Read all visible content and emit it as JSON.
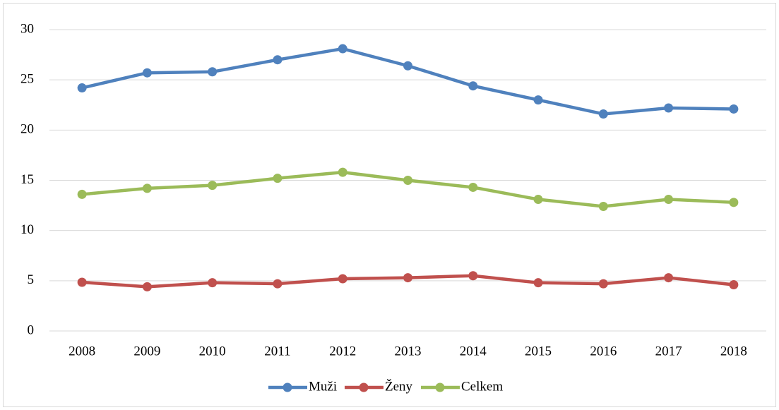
{
  "chart_data": {
    "type": "line",
    "categories": [
      "2008",
      "2009",
      "2010",
      "2011",
      "2012",
      "2013",
      "2014",
      "2015",
      "2016",
      "2017",
      "2018"
    ],
    "series": [
      {
        "name": "Muži",
        "color": "#4f81bd",
        "values": [
          24.2,
          25.7,
          25.8,
          27.0,
          28.1,
          26.4,
          24.4,
          23.0,
          21.6,
          22.2,
          22.1
        ]
      },
      {
        "name": "Ženy",
        "color": "#c0504d",
        "values": [
          4.85,
          4.4,
          4.8,
          4.7,
          5.2,
          5.3,
          5.5,
          4.8,
          4.7,
          5.3,
          4.6
        ]
      },
      {
        "name": "Celkem",
        "color": "#9bbb59",
        "values": [
          13.6,
          14.2,
          14.5,
          15.2,
          15.8,
          15.0,
          14.3,
          13.1,
          12.4,
          13.1,
          12.8
        ]
      }
    ],
    "ylim": [
      0,
      30
    ],
    "yticks": [
      0,
      5,
      10,
      15,
      20,
      25,
      30
    ],
    "grid": true,
    "legend": "bottom"
  }
}
